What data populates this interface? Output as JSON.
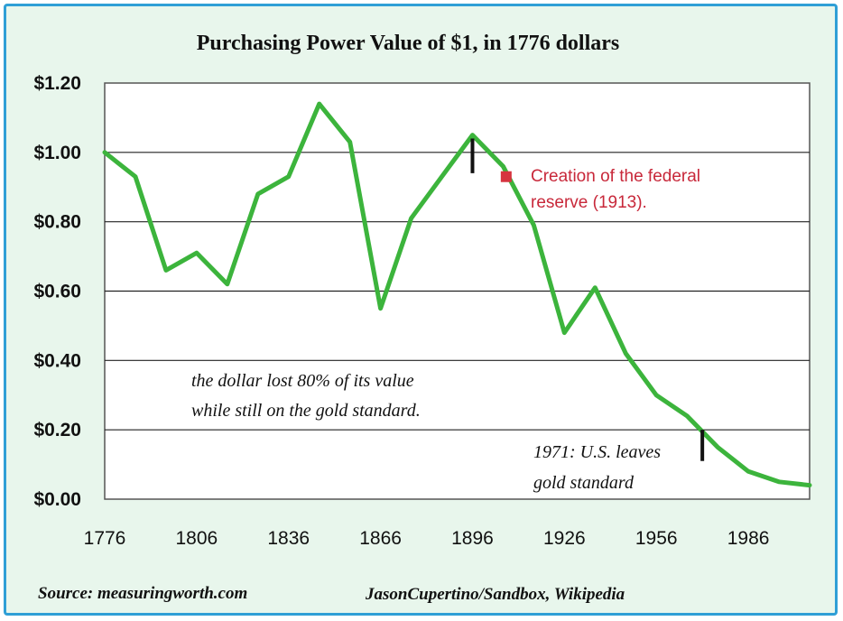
{
  "chart_data": {
    "type": "line",
    "title": "Purchasing Power Value of $1, in 1776 dollars",
    "xlabel": "",
    "ylabel": "",
    "x_ticks": [
      "1776",
      "1806",
      "1836",
      "1866",
      "1896",
      "1926",
      "1956",
      "1986"
    ],
    "y_ticks": [
      "$0.00",
      "$0.20",
      "$0.40",
      "$0.60",
      "$0.80",
      "$1.00",
      "$1.20"
    ],
    "xlim": [
      1776,
      2006
    ],
    "ylim": [
      0,
      1.2
    ],
    "grid": true,
    "series": [
      {
        "color": "#3cb43c",
        "x": [
          1776,
          1786,
          1796,
          1806,
          1816,
          1826,
          1836,
          1846,
          1856,
          1866,
          1876,
          1886,
          1896,
          1906,
          1916,
          1926,
          1936,
          1946,
          1956,
          1966,
          1976,
          1986,
          1996,
          2006
        ],
        "y": [
          1.0,
          0.93,
          0.66,
          0.71,
          0.62,
          0.88,
          0.93,
          1.14,
          1.03,
          0.55,
          0.81,
          0.93,
          1.05,
          0.96,
          0.79,
          0.48,
          0.61,
          0.42,
          0.3,
          0.24,
          0.15,
          0.08,
          0.05,
          0.04
        ]
      }
    ],
    "annotations": {
      "fed_label_line1": "Creation of the federal",
      "fed_label_line2": "reserve (1913).",
      "fed_color": "#d6343f",
      "fed_marker_x": 1907,
      "fed_marker_y": 0.93,
      "gold_note_line1": "the dollar lost 80% of its value",
      "gold_note_line2": "while still on the gold standard.",
      "leave_note_line1": "1971: U.S. leaves",
      "leave_note_line2": "gold standard",
      "tick_1896_x": 1896,
      "tick_1896_y": [
        0.94,
        1.04
      ],
      "tick_1971_x": 1971,
      "tick_1971_y": [
        0.11,
        0.2
      ]
    }
  },
  "footer": {
    "source": "Source: measuringworth.com",
    "credit": "JasonCupertino/Sandbox, Wikipedia"
  },
  "colors": {
    "frame_border": "#2f9fd6",
    "background": "#e8f6ec",
    "line": "#3cb43c"
  }
}
